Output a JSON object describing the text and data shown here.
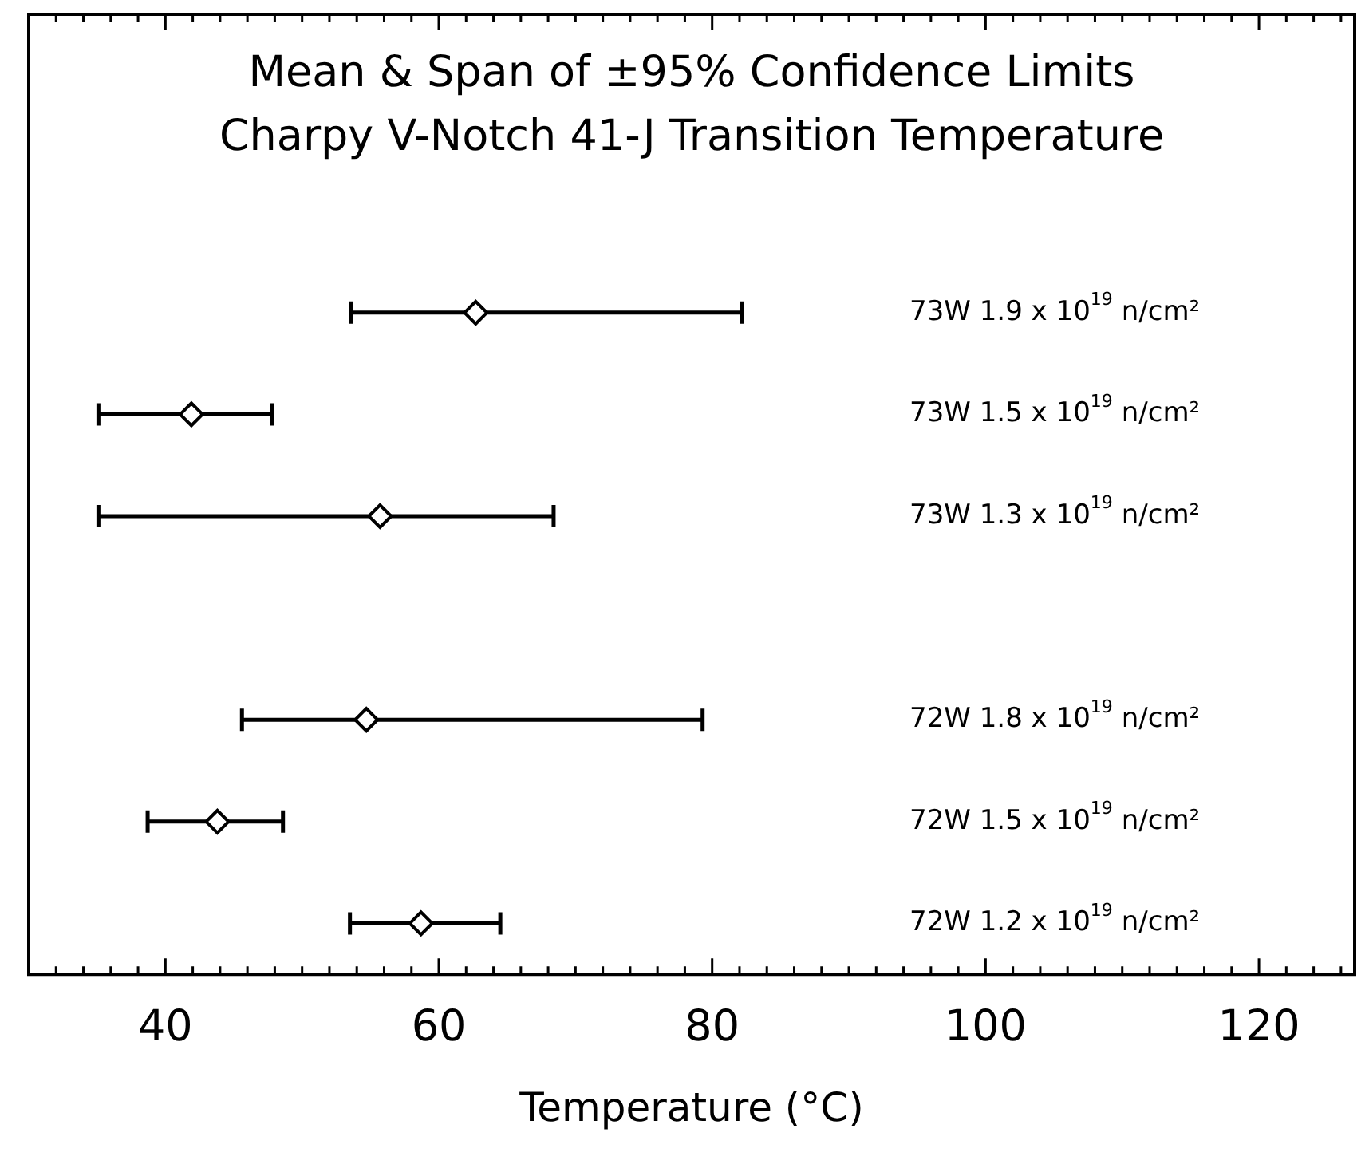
{
  "chart_data": {
    "type": "scatter",
    "title": "Mean & Span of ±95% Confidence Limits",
    "subtitle": "Charpy V-Notch 41-J Transition Temperature",
    "xlabel": "Temperature (°C)",
    "orientation": "horizontal",
    "categories": [
      "73W 1.9 x 10$^{19}$ n/cm²",
      "73W 1.5 x 10$^{19}$ n/cm²",
      "73W 1.3 x 10$^{19}$ n/cm²",
      null,
      "72W 1.8 x 10$^{19}$ n/cm²",
      "72W 1.5 x 10$^{19}$ n/cm²",
      "72W 1.2 x 10$^{19}$ n/cm²"
    ],
    "values": [
      62.7,
      41.9,
      55.7,
      null,
      54.7,
      43.8,
      58.7
    ],
    "errors": [
      [
        53.6,
        82.2
      ],
      [
        35.1,
        47.8
      ],
      [
        35.1,
        68.4
      ],
      null,
      [
        45.6,
        79.3
      ],
      [
        38.7,
        48.6
      ],
      [
        53.5,
        64.5
      ]
    ],
    "color": "#000000",
    "marker": "diamond",
    "xlim": [
      30,
      127
    ],
    "xticks": [
      {
        "value": 30,
        "label": null
      },
      {
        "value": 32,
        "label": null
      },
      {
        "value": 34,
        "label": null
      },
      {
        "value": 36,
        "label": null
      },
      {
        "value": 38,
        "label": null
      },
      40,
      {
        "value": 42,
        "label": null
      },
      {
        "value": 44,
        "label": null
      },
      {
        "value": 46,
        "label": null
      },
      {
        "value": 48,
        "label": null
      },
      {
        "value": 50,
        "label": null
      },
      {
        "value": 52,
        "label": null
      },
      {
        "value": 54,
        "label": null
      },
      {
        "value": 56,
        "label": null
      },
      {
        "value": 58,
        "label": null
      },
      60,
      {
        "value": 62,
        "label": null
      },
      {
        "value": 64,
        "label": null
      },
      {
        "value": 66,
        "label": null
      },
      {
        "value": 68,
        "label": null
      },
      {
        "value": 70,
        "label": null
      },
      {
        "value": 72,
        "label": null
      },
      {
        "value": 74,
        "label": null
      },
      {
        "value": 76,
        "label": null
      },
      {
        "value": 78,
        "label": null
      },
      80,
      {
        "value": 82,
        "label": null
      },
      {
        "value": 84,
        "label": null
      },
      {
        "value": 86,
        "label": null
      },
      {
        "value": 88,
        "label": null
      },
      {
        "value": 90,
        "label": null
      },
      {
        "value": 92,
        "label": null
      },
      {
        "value": 94,
        "label": null
      },
      {
        "value": 96,
        "label": null
      },
      {
        "value": 98,
        "label": null
      },
      100,
      {
        "value": 102,
        "label": null
      },
      {
        "value": 104,
        "label": null
      },
      {
        "value": 106,
        "label": null
      },
      {
        "value": 108,
        "label": null
      },
      {
        "value": 110,
        "label": null
      },
      {
        "value": 112,
        "label": null
      },
      {
        "value": 114,
        "label": null
      },
      {
        "value": 116,
        "label": null
      },
      {
        "value": 118,
        "label": null
      },
      120,
      {
        "value": 122,
        "label": null
      },
      {
        "value": 124,
        "label": null
      },
      {
        "value": 126,
        "label": null
      }
    ]
  }
}
